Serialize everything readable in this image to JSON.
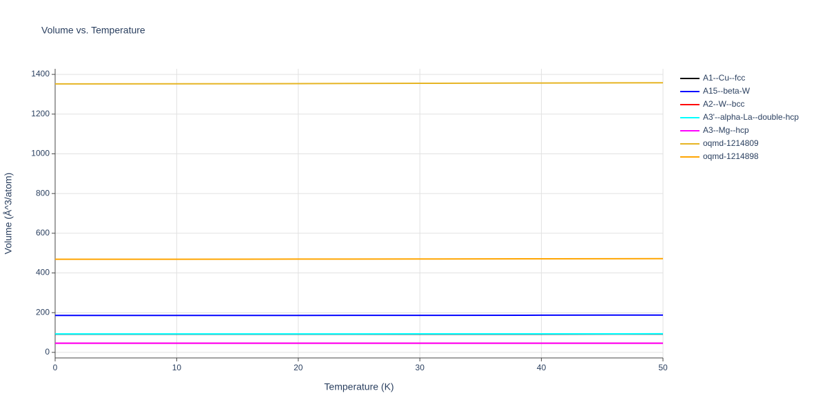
{
  "chart_data": {
    "type": "line",
    "title": "Volume vs. Temperature",
    "x_label": "Temperature (K)",
    "y_label": "Volume (Å^3/atom)",
    "x": [
      0,
      10,
      20,
      30,
      40,
      50
    ],
    "series": [
      {
        "name": "A1--Cu--fcc",
        "color": "#000000",
        "values": [
          92,
          92,
          92,
          92,
          92.2,
          92.4
        ]
      },
      {
        "name": "A15--beta-W",
        "color": "#0000ff",
        "values": [
          186,
          186,
          186.2,
          186.6,
          187.2,
          188
        ]
      },
      {
        "name": "A2--W--bcc",
        "color": "#ff0000",
        "values": [
          46,
          46,
          46,
          46,
          46.1,
          46.2
        ]
      },
      {
        "name": "A3'--alpha-La--double-hcp",
        "color": "#00ffff",
        "values": [
          93,
          93,
          93,
          93.2,
          93.4,
          93.6
        ]
      },
      {
        "name": "A3--Mg--hcp",
        "color": "#ff00ff",
        "values": [
          46,
          46,
          46,
          46,
          46.1,
          46.2
        ]
      },
      {
        "name": "oqmd-1214809",
        "color": "#e6b422",
        "values": [
          1352,
          1352.5,
          1353.5,
          1355,
          1356.5,
          1358
        ]
      },
      {
        "name": "oqmd-1214898",
        "color": "#ffa500",
        "values": [
          469,
          469.2,
          469.7,
          470.4,
          471.2,
          472
        ]
      }
    ],
    "xlim": [
      0,
      50
    ],
    "xticks": [
      0,
      10,
      20,
      30,
      40,
      50
    ],
    "ylim": [
      -28,
      1428
    ],
    "yticks": [
      0,
      200,
      400,
      600,
      800,
      1000,
      1200,
      1400
    ],
    "grid": true,
    "legend": "right"
  }
}
